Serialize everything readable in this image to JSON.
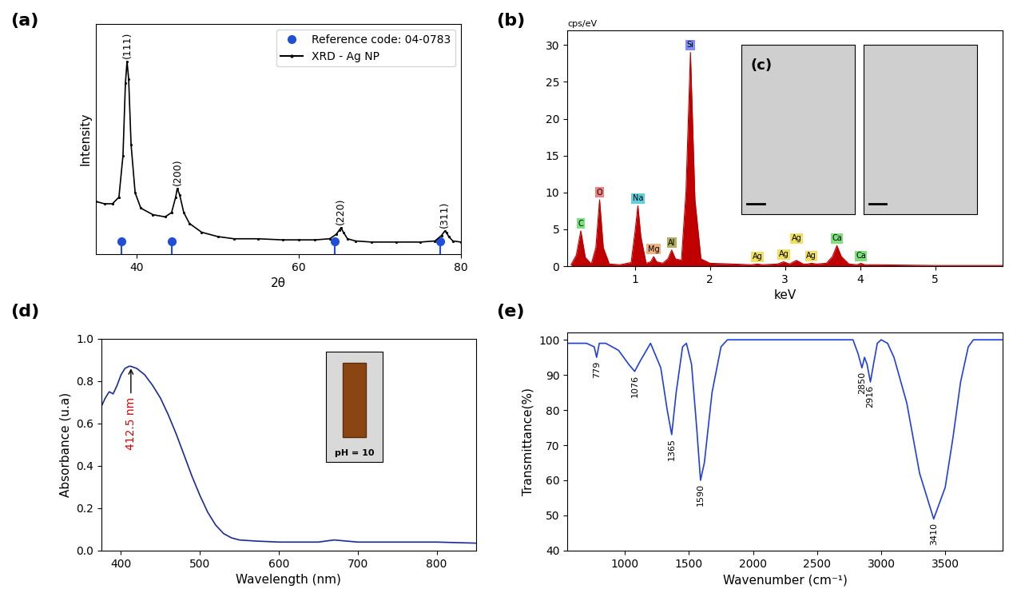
{
  "chart_data": [
    {
      "panel": "(a)",
      "type": "line",
      "xlabel": "2θ",
      "ylabel": "Intensity",
      "xlim": [
        35,
        80
      ],
      "xticks": [
        40,
        60,
        80
      ],
      "ylim": [
        0,
        105
      ],
      "tick_labels": "x",
      "legend": "upper right",
      "series": [
        {
          "name": "Reference code: 04-0783",
          "type": "stem",
          "color": "#1f4fd8",
          "marker": "circle",
          "x": [
            38.1,
            44.3,
            64.4,
            77.4
          ],
          "values": [
            6,
            6,
            6,
            6
          ]
        },
        {
          "name": "XRD - Ag NP",
          "type": "line",
          "color": "#000000",
          "marker": "dot",
          "line_style": "solid",
          "x": [
            35,
            36,
            37,
            37.8,
            38.3,
            38.6,
            38.8,
            39.0,
            39.3,
            39.8,
            40.5,
            42,
            43.5,
            44.3,
            44.8,
            45.0,
            45.3,
            45.8,
            46.5,
            48,
            50,
            52,
            55,
            58,
            60,
            62,
            63.8,
            64.6,
            65.0,
            65.2,
            65.5,
            66.0,
            67,
            69,
            72,
            75,
            76.8,
            77.6,
            78.0,
            78.2,
            78.5,
            79,
            80
          ],
          "values": [
            24,
            23,
            23,
            26,
            45,
            78,
            88,
            80,
            50,
            28,
            21,
            18,
            17,
            19,
            26,
            30,
            27,
            19,
            14,
            10,
            8,
            7,
            7,
            6.5,
            6.5,
            6.5,
            7,
            9,
            11,
            12,
            10,
            7,
            6,
            5.5,
            5.5,
            5.5,
            6,
            8.5,
            10.5,
            10,
            8,
            6,
            5.5
          ]
        }
      ],
      "peaks": [
        {
          "label": "(111)",
          "x": 38.8
        },
        {
          "label": "(200)",
          "x": 45.0
        },
        {
          "label": "(220)",
          "x": 65.2
        },
        {
          "label": "(311)",
          "x": 78.0
        }
      ]
    },
    {
      "panel": "(b)",
      "type": "area",
      "xlabel": "keV",
      "ylabel": "cps/eV",
      "xlim": [
        0.1,
        5.9
      ],
      "xticks": [
        1,
        2,
        3,
        4,
        5
      ],
      "ylim": [
        0,
        32
      ],
      "yticks": [
        0,
        5,
        10,
        15,
        20,
        25,
        30
      ],
      "inset_label": "(c)",
      "series": [
        {
          "type": "area",
          "color": "#c00000",
          "x": [
            0.15,
            0.22,
            0.28,
            0.34,
            0.42,
            0.48,
            0.53,
            0.58,
            0.66,
            0.8,
            0.95,
            1.0,
            1.04,
            1.08,
            1.15,
            1.21,
            1.25,
            1.29,
            1.37,
            1.44,
            1.49,
            1.54,
            1.62,
            1.68,
            1.74,
            1.8,
            1.88,
            2.0,
            2.3,
            2.55,
            2.63,
            2.7,
            2.9,
            2.98,
            3.06,
            3.15,
            3.24,
            3.3,
            3.35,
            3.42,
            3.55,
            3.63,
            3.69,
            3.75,
            3.85,
            3.96,
            4.01,
            4.06,
            4.2,
            5.0,
            5.9
          ],
          "values": [
            0.2,
            1.5,
            4.8,
            1.2,
            0.3,
            2.5,
            9.0,
            2.5,
            0.3,
            0.2,
            0.5,
            4.5,
            8.2,
            4.0,
            0.4,
            0.6,
            1.3,
            0.6,
            0.4,
            1.0,
            2.2,
            1.0,
            0.8,
            10,
            29,
            9,
            1.0,
            0.4,
            0.3,
            0.2,
            0.3,
            0.2,
            0.3,
            0.6,
            0.3,
            0.8,
            0.3,
            0.3,
            0.4,
            0.3,
            0.4,
            1.3,
            2.8,
            1.3,
            0.3,
            0.2,
            0.4,
            0.2,
            0.2,
            0.1,
            0.1
          ]
        }
      ],
      "peaks": [
        {
          "label": "C",
          "x": 0.28,
          "color": "#7fe07f"
        },
        {
          "label": "O",
          "x": 0.53,
          "color": "#f08080"
        },
        {
          "label": "Na",
          "x": 1.04,
          "color": "#60d0e0"
        },
        {
          "label": "Mg",
          "x": 1.25,
          "color": "#f0b080"
        },
        {
          "label": "Al",
          "x": 1.49,
          "color": "#b0b060"
        },
        {
          "label": "Si",
          "x": 1.74,
          "color": "#8090f0"
        },
        {
          "label": "Ag",
          "x": 2.63,
          "color": "#f0e060"
        },
        {
          "label": "Ag",
          "x": 2.98,
          "color": "#f0e060"
        },
        {
          "label": "Ag",
          "x": 3.15,
          "color": "#f0e060"
        },
        {
          "label": "Ag",
          "x": 3.35,
          "color": "#f0e060"
        },
        {
          "label": "Ca",
          "x": 3.69,
          "color": "#80e080"
        },
        {
          "label": "Ca",
          "x": 4.01,
          "color": "#80e080"
        }
      ]
    },
    {
      "panel": "(d)",
      "type": "line",
      "xlabel": "Wavelength (nm)",
      "ylabel": "Absorbance (u.a)",
      "xlim": [
        375,
        850
      ],
      "xticks": [
        400,
        500,
        600,
        700,
        800
      ],
      "ylim": [
        0.0,
        1.0
      ],
      "yticks": [
        0.0,
        0.2,
        0.4,
        0.6,
        0.8,
        1.0
      ],
      "inset_label": "pH = 10",
      "series": [
        {
          "type": "line",
          "color": "#1a2a9a",
          "line_style": "solid",
          "x": [
            375,
            380,
            385,
            390,
            395,
            400,
            405,
            410,
            412.5,
            420,
            430,
            440,
            450,
            460,
            470,
            480,
            490,
            500,
            510,
            520,
            530,
            540,
            550,
            570,
            600,
            650,
            670,
            700,
            750,
            800,
            850
          ],
          "values": [
            0.68,
            0.72,
            0.75,
            0.74,
            0.78,
            0.83,
            0.86,
            0.87,
            0.87,
            0.86,
            0.83,
            0.78,
            0.72,
            0.64,
            0.55,
            0.45,
            0.35,
            0.26,
            0.18,
            0.12,
            0.08,
            0.06,
            0.05,
            0.045,
            0.04,
            0.04,
            0.05,
            0.04,
            0.04,
            0.04,
            0.035
          ]
        }
      ],
      "annotations": [
        {
          "text": "412.5 nm",
          "x": 412.5,
          "color": "#e00000"
        }
      ]
    },
    {
      "panel": "(e)",
      "type": "line",
      "xlabel": "Wavenumber (cm⁻¹)",
      "ylabel": "Transmittance(%)",
      "xlim": [
        550,
        3950
      ],
      "xticks": [
        1000,
        1500,
        2000,
        2500,
        3000,
        3500
      ],
      "ylim": [
        40,
        102
      ],
      "yticks": [
        40,
        50,
        60,
        70,
        80,
        90,
        100
      ],
      "series": [
        {
          "type": "line",
          "color": "#1f3fe0",
          "line_style": "solid",
          "x": [
            550,
            700,
            760,
            779,
            800,
            850,
            950,
            1030,
            1076,
            1120,
            1200,
            1280,
            1330,
            1365,
            1400,
            1450,
            1480,
            1520,
            1560,
            1590,
            1620,
            1680,
            1750,
            1800,
            2000,
            2500,
            2780,
            2820,
            2850,
            2870,
            2890,
            2916,
            2940,
            2970,
            3000,
            3050,
            3100,
            3200,
            3300,
            3410,
            3500,
            3560,
            3620,
            3680,
            3720,
            3800,
            3950
          ],
          "values": [
            99,
            99,
            98,
            95,
            99,
            99,
            97,
            93,
            91,
            94,
            99,
            92,
            80,
            73,
            85,
            98,
            99,
            93,
            75,
            60,
            65,
            85,
            98,
            100,
            100,
            100,
            100,
            96,
            92,
            95,
            93,
            88,
            93,
            99,
            100,
            99,
            95,
            82,
            62,
            49,
            58,
            72,
            88,
            98,
            100,
            100,
            100
          ]
        }
      ],
      "peaks": [
        {
          "x": 779
        },
        {
          "x": 1076
        },
        {
          "x": 1365
        },
        {
          "x": 1590
        },
        {
          "x": 2850
        },
        {
          "x": 2916
        },
        {
          "x": 3410
        }
      ]
    }
  ]
}
